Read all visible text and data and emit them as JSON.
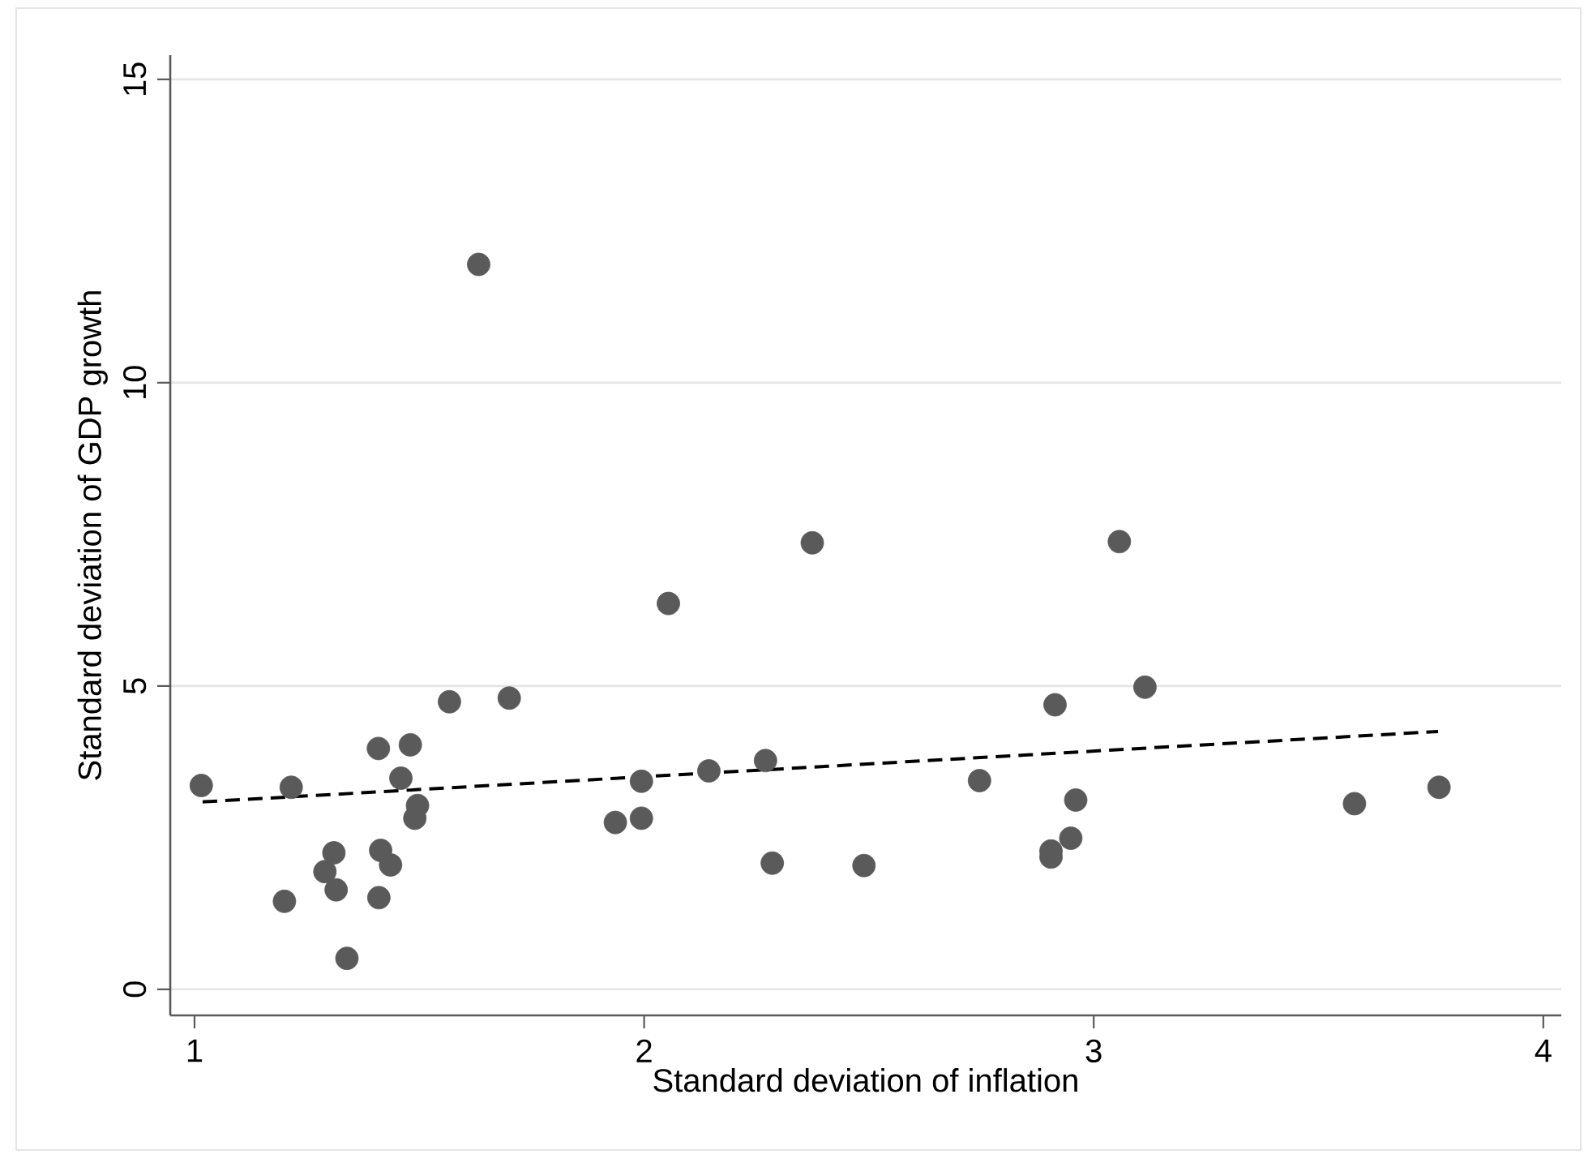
{
  "chart_data": {
    "type": "scatter",
    "xlabel": "Standard deviation of inflation",
    "ylabel": "Standard deviation of GDP growth",
    "xlim": [
      0.946,
      4.04
    ],
    "ylim": [
      -0.43,
      15.4
    ],
    "xticks": [
      1,
      2,
      3,
      4
    ],
    "yticks": [
      0,
      5,
      10,
      15
    ],
    "grid": "y",
    "marker": "circle",
    "series": [
      {
        "color": "#5a5a5a",
        "x": [
          1.015,
          1.215,
          1.2,
          1.31,
          1.29,
          1.315,
          1.339,
          1.409,
          1.414,
          1.41,
          1.436,
          1.48,
          1.459,
          1.496,
          1.49,
          1.567,
          1.632,
          1.7,
          1.936,
          1.994,
          1.994,
          2.054,
          2.374,
          2.144,
          2.27,
          2.285,
          2.489,
          2.746,
          2.914,
          3.057,
          3.114,
          2.96,
          2.949,
          2.905,
          2.905,
          3.58,
          3.768
        ],
        "values": [
          3.36,
          3.33,
          1.45,
          2.25,
          1.94,
          1.64,
          0.51,
          3.97,
          2.29,
          1.51,
          2.05,
          4.03,
          3.48,
          3.03,
          2.82,
          4.74,
          11.95,
          4.8,
          2.75,
          2.82,
          3.43,
          6.36,
          7.36,
          3.6,
          3.77,
          2.08,
          2.04,
          3.44,
          4.69,
          7.38,
          4.98,
          3.12,
          2.49,
          2.28,
          2.18,
          3.06,
          3.33
        ]
      },
      {
        "type": "line",
        "color": "#000000",
        "line_style": "dashed",
        "marker": "none",
        "x": [
          1.018,
          3.766
        ],
        "values": [
          3.09,
          4.25
        ]
      }
    ]
  }
}
